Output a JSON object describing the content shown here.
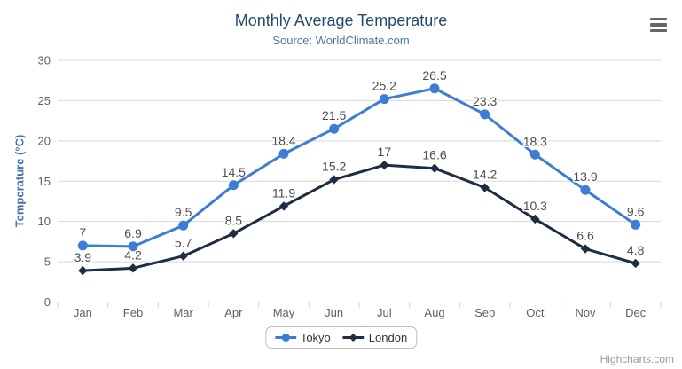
{
  "title": "Monthly Average Temperature",
  "subtitle": "Source: WorldClimate.com",
  "credits": "Highcharts.com",
  "menu_icon": "hamburger-icon",
  "colors": {
    "title": "#274b6d",
    "subtitle": "#4d759e",
    "yaxis_title": "#4572a7",
    "tick_text": "#606060",
    "grid": "#d8d8d8",
    "axis_line": "#c0d0e0",
    "data_label": "#4d4d4d",
    "legend_text": "#333333",
    "menu": "#666666",
    "credits": "#9a9a9a",
    "background": "#ffffff"
  },
  "chart_data": {
    "type": "line",
    "title": "Monthly Average Temperature",
    "subtitle": "Source: WorldClimate.com",
    "categories": [
      "Jan",
      "Feb",
      "Mar",
      "Apr",
      "May",
      "Jun",
      "Jul",
      "Aug",
      "Sep",
      "Oct",
      "Nov",
      "Dec"
    ],
    "series": [
      {
        "name": "Tokyo",
        "color": "#3e7dd6",
        "marker": "circle",
        "values": [
          7,
          6.9,
          9.5,
          14.5,
          18.4,
          21.5,
          25.2,
          26.5,
          23.3,
          18.3,
          13.9,
          9.6
        ]
      },
      {
        "name": "London",
        "color": "#1d2d44",
        "marker": "diamond",
        "values": [
          3.9,
          4.2,
          5.7,
          8.5,
          11.9,
          15.2,
          17,
          16.6,
          14.2,
          10.3,
          6.6,
          4.8
        ]
      }
    ],
    "xlabel": "",
    "ylabel": "Temperature (°C)",
    "ylim": [
      0,
      30
    ],
    "yticks": [
      0,
      5,
      10,
      15,
      20,
      25,
      30
    ],
    "grid": true,
    "legend_position": "bottom",
    "data_labels": true
  }
}
